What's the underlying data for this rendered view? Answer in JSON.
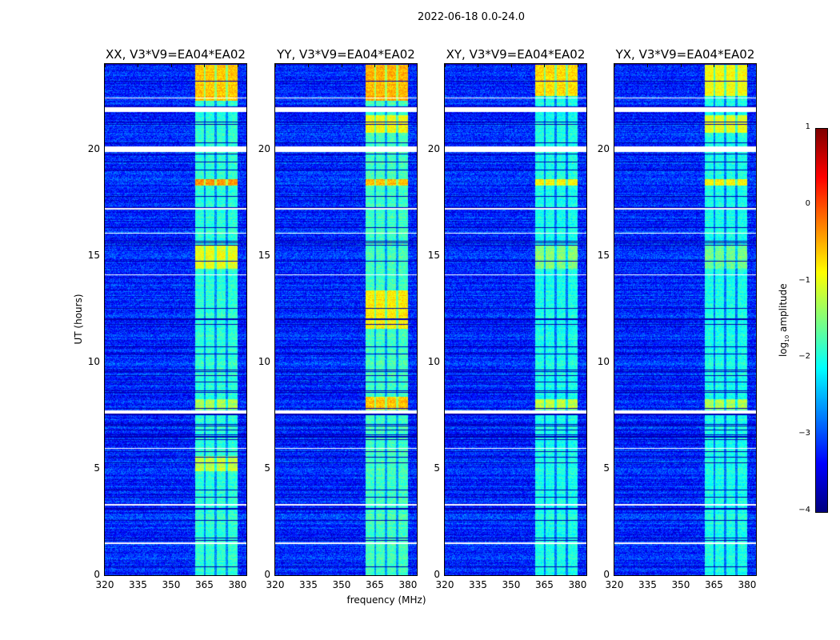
{
  "chart_data": {
    "type": "heatmap",
    "title": "2022-06-18 0.0-24.0",
    "xlabel": "frequency (MHz)",
    "ylabel": "UT (hours)",
    "xlim": [
      320,
      384
    ],
    "ylim": [
      0,
      24
    ],
    "xticks": [
      "320",
      "335",
      "350",
      "365",
      "380"
    ],
    "xtick_values": [
      320,
      335,
      350,
      365,
      380
    ],
    "yticks": [
      "0",
      "5",
      "10",
      "15",
      "20"
    ],
    "ytick_values": [
      0,
      5,
      10,
      15,
      20
    ],
    "colorbar": {
      "label": "log10 amplitude",
      "label_main": "log",
      "label_sub": "10",
      "label_tail": " amplitude",
      "range": [
        -4,
        1
      ],
      "ticks": [
        "1",
        "0",
        "−1",
        "−2",
        "−3",
        "−4"
      ],
      "tick_values": [
        1,
        0,
        -1,
        -2,
        -3,
        -4
      ],
      "colormap": "jet"
    },
    "background_level": -3.2,
    "band_range_mhz": [
      360.5,
      380
    ],
    "band_subdivisions_mhz": [
      365,
      370,
      375
    ],
    "flagged_intervals_hours": [
      [
        21.76,
        21.98
      ],
      [
        19.9,
        20.15
      ],
      [
        7.6,
        7.75
      ],
      [
        22.4,
        22.45
      ],
      [
        14.1,
        14.15
      ],
      [
        3.3,
        3.35
      ],
      [
        1.5,
        1.55
      ],
      [
        17.2,
        17.25
      ],
      [
        16.05,
        16.1
      ],
      [
        5.95,
        6.0
      ]
    ],
    "panels": [
      {
        "title": "XX, V3*V9=EA04*EA02",
        "band_level": -1.9,
        "bright_epochs": [
          [
            22.3,
            24,
            -0.6
          ],
          [
            18.3,
            18.6,
            -0.4
          ],
          [
            14.4,
            15.5,
            -1.0
          ],
          [
            4.9,
            5.6,
            -1.2
          ],
          [
            7.8,
            8.3,
            -1.3
          ]
        ]
      },
      {
        "title": "YY, V3*V9=EA04*EA02",
        "band_level": -1.8,
        "bright_epochs": [
          [
            22.3,
            24,
            -0.5
          ],
          [
            20.8,
            21.6,
            -0.9
          ],
          [
            18.3,
            18.6,
            -0.6
          ],
          [
            11.6,
            13.4,
            -0.8
          ],
          [
            7.8,
            8.4,
            -0.6
          ]
        ]
      },
      {
        "title": "XY, V3*V9=EA04*EA02",
        "band_level": -2.0,
        "bright_epochs": [
          [
            22.5,
            24,
            -0.7
          ],
          [
            18.3,
            18.6,
            -0.9
          ],
          [
            14.4,
            15.5,
            -1.5
          ],
          [
            7.8,
            8.3,
            -1.2
          ]
        ]
      },
      {
        "title": "YX, V3*V9=EA04*EA02",
        "band_level": -2.0,
        "bright_epochs": [
          [
            22.5,
            24,
            -0.9
          ],
          [
            20.8,
            21.6,
            -1.0
          ],
          [
            18.3,
            18.6,
            -0.9
          ],
          [
            14.4,
            15.5,
            -1.6
          ],
          [
            7.8,
            8.3,
            -1.3
          ]
        ]
      }
    ]
  }
}
